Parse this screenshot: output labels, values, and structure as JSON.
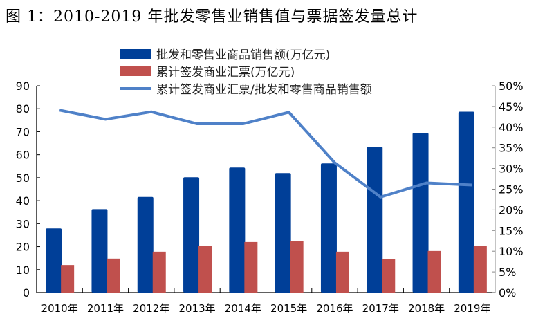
{
  "title": "图 1：2010-2019 年批发零售业销售值与票据签发量总计",
  "chart_data": {
    "type": "bar",
    "categories": [
      "2010年",
      "2011年",
      "2012年",
      "2013年",
      "2014年",
      "2015年",
      "2016年",
      "2017年",
      "2018年",
      "2019年"
    ],
    "series": [
      {
        "name": "批发和零售业商品销售额(万亿元)",
        "type": "bar",
        "axis": "left",
        "color": "#003f98",
        "values": [
          27.9,
          36.3,
          41.6,
          50.2,
          54.4,
          52.0,
          56.2,
          63.5,
          69.5,
          78.7
        ]
      },
      {
        "name": "累计签发商业汇票(万亿元)",
        "type": "bar",
        "axis": "left",
        "color": "#c0504d",
        "values": [
          12.0,
          14.8,
          17.8,
          20.2,
          22.0,
          22.3,
          17.8,
          14.5,
          18.1,
          20.2
        ]
      },
      {
        "name": "累计签发商业汇票/批发和零售商品销售额",
        "type": "line",
        "axis": "right",
        "color": "#4f81c8",
        "values": [
          44.1,
          41.9,
          43.7,
          40.8,
          40.8,
          43.6,
          31.4,
          23.1,
          26.5,
          26.0
        ]
      }
    ],
    "ylim": [
      0,
      90
    ],
    "yticks": [
      "0",
      "10",
      "20",
      "30",
      "40",
      "50",
      "60",
      "70",
      "80",
      "90"
    ],
    "y2lim": [
      0,
      50
    ],
    "y2ticks": [
      "0%",
      "5%",
      "10%",
      "15%",
      "20%",
      "25%",
      "30%",
      "35%",
      "40%",
      "45%",
      "50%"
    ],
    "legend": "top-center"
  }
}
